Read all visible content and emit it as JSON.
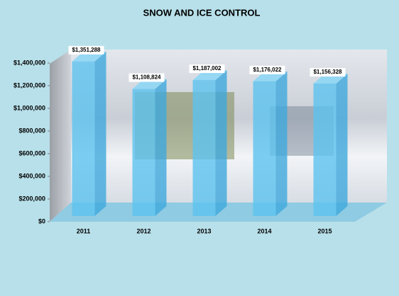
{
  "chart_data": {
    "type": "bar3d",
    "title": "SNOW AND ICE CONTROL",
    "categories": [
      "2011",
      "2012",
      "2013",
      "2014",
      "2015"
    ],
    "values": [
      1351288,
      1108824,
      1187002,
      1176022,
      1156328
    ],
    "value_labels": [
      "$1,351,288",
      "$1,108,824",
      "$1,187,002",
      "$1,176,022",
      "$1,156,328"
    ],
    "color": "#5cc3ef",
    "ylim": [
      0,
      1400000
    ],
    "yticks": [
      {
        "value": 0,
        "label": "$0"
      },
      {
        "value": 200000,
        "label": "$200,000"
      },
      {
        "value": 400000,
        "label": "$400,000"
      },
      {
        "value": 600000,
        "label": "$600,000"
      },
      {
        "value": 800000,
        "label": "$800,000"
      },
      {
        "value": 1000000,
        "label": "$1,000,000"
      },
      {
        "value": 1200000,
        "label": "$1,200,000"
      },
      {
        "value": 1400000,
        "label": "$1,400,000"
      }
    ]
  }
}
